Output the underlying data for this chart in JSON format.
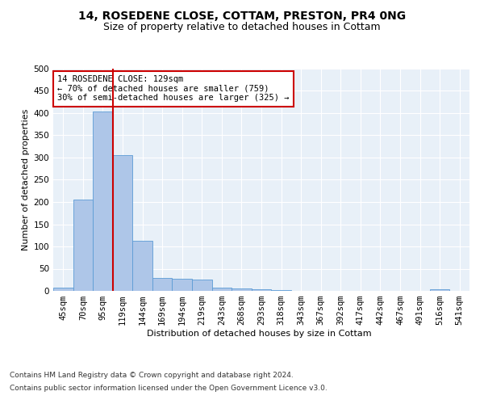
{
  "title": "14, ROSEDENE CLOSE, COTTAM, PRESTON, PR4 0NG",
  "subtitle": "Size of property relative to detached houses in Cottam",
  "xlabel": "Distribution of detached houses by size in Cottam",
  "ylabel": "Number of detached properties",
  "categories": [
    "45sqm",
    "70sqm",
    "95sqm",
    "119sqm",
    "144sqm",
    "169sqm",
    "194sqm",
    "219sqm",
    "243sqm",
    "268sqm",
    "293sqm",
    "318sqm",
    "343sqm",
    "367sqm",
    "392sqm",
    "417sqm",
    "442sqm",
    "467sqm",
    "491sqm",
    "516sqm",
    "541sqm"
  ],
  "values": [
    8,
    205,
    403,
    305,
    112,
    30,
    28,
    25,
    8,
    6,
    4,
    1,
    0,
    0,
    0,
    0,
    0,
    0,
    0,
    4,
    0
  ],
  "bar_color": "#aec6e8",
  "bar_edge_color": "#5b9bd5",
  "red_line_x": 2.5,
  "annotation_text": "14 ROSEDENE CLOSE: 129sqm\n← 70% of detached houses are smaller (759)\n30% of semi-detached houses are larger (325) →",
  "annotation_box_color": "#ffffff",
  "annotation_box_edge": "#cc0000",
  "red_line_color": "#cc0000",
  "footer1": "Contains HM Land Registry data © Crown copyright and database right 2024.",
  "footer2": "Contains public sector information licensed under the Open Government Licence v3.0.",
  "ylim": [
    0,
    500
  ],
  "yticks": [
    0,
    50,
    100,
    150,
    200,
    250,
    300,
    350,
    400,
    450,
    500
  ],
  "bg_color": "#e8f0f8",
  "fig_bg_color": "#ffffff",
  "title_fontsize": 10,
  "subtitle_fontsize": 9,
  "axis_label_fontsize": 8,
  "tick_fontsize": 7.5,
  "footer_fontsize": 6.5,
  "annotation_fontsize": 7.5
}
